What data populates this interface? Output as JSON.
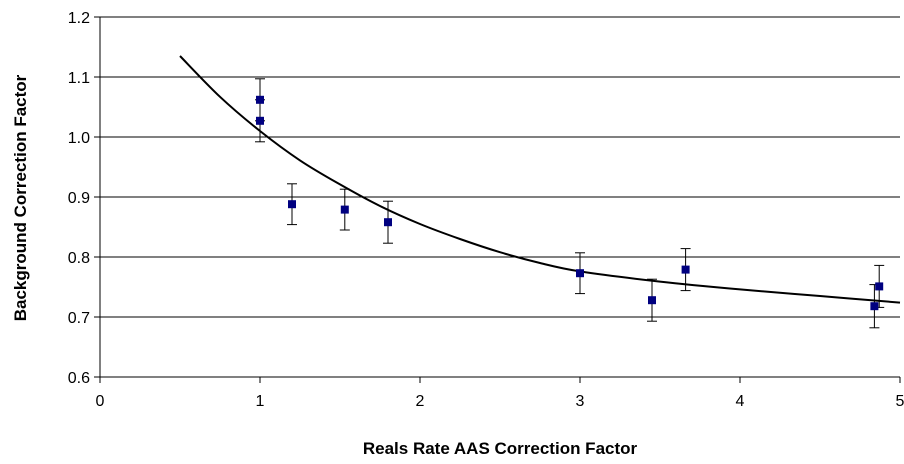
{
  "chart_data": {
    "type": "scatter",
    "title": "",
    "xlabel": "Reals Rate AAS Correction Factor",
    "ylabel": "Background Correction Factor",
    "xlim": [
      0,
      5
    ],
    "ylim": [
      0.6,
      1.2
    ],
    "x_ticks": [
      "0",
      "1",
      "2",
      "3",
      "4",
      "5"
    ],
    "y_ticks": [
      "0.6",
      "0.7",
      "0.8",
      "0.9",
      "1.0",
      "1.1",
      "1.2"
    ],
    "grid": "horizontal",
    "legend": "none",
    "marker_color": "#000080",
    "points": [
      {
        "x": 1.0,
        "y": 1.062,
        "err": 0.035
      },
      {
        "x": 1.0,
        "y": 1.027,
        "err": 0.035
      },
      {
        "x": 1.2,
        "y": 0.888,
        "err": 0.034
      },
      {
        "x": 1.53,
        "y": 0.879,
        "err": 0.034
      },
      {
        "x": 1.8,
        "y": 0.858,
        "err": 0.035
      },
      {
        "x": 3.0,
        "y": 0.773,
        "err": 0.034
      },
      {
        "x": 3.45,
        "y": 0.728,
        "err": 0.035
      },
      {
        "x": 3.66,
        "y": 0.779,
        "err": 0.035
      },
      {
        "x": 4.84,
        "y": 0.718,
        "err": 0.036
      },
      {
        "x": 4.87,
        "y": 0.751,
        "err": 0.035
      }
    ],
    "fit_curve": {
      "x": [
        0.5,
        0.75,
        1.0,
        1.25,
        1.5,
        1.75,
        2.0,
        2.25,
        2.5,
        2.75,
        3.0,
        3.5,
        4.0,
        4.5,
        5.0
      ],
      "y": [
        1.135,
        1.067,
        1.01,
        0.961,
        0.921,
        0.885,
        0.855,
        0.83,
        0.808,
        0.79,
        0.776,
        0.759,
        0.746,
        0.735,
        0.724
      ]
    }
  }
}
